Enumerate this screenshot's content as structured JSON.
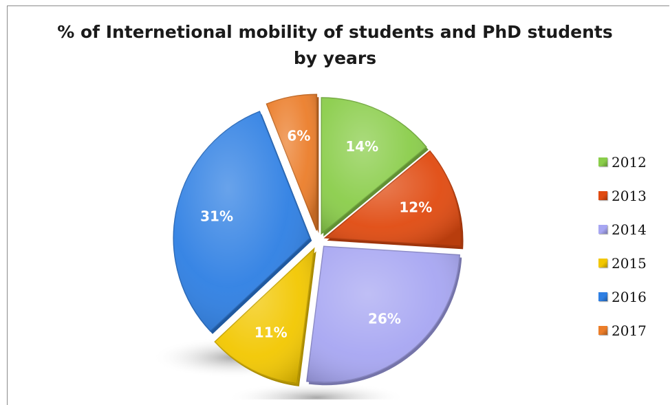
{
  "chart_data": {
    "type": "pie",
    "title": "% of Internetional mobility of students and PhD students by years",
    "title_lines": [
      "% of Internetional mobility of students and PhD students",
      "by years"
    ],
    "categories": [
      "2012",
      "2013",
      "2014",
      "2015",
      "2016",
      "2017"
    ],
    "values": [
      14,
      12,
      26,
      11,
      31,
      6
    ],
    "value_labels": [
      "14%",
      "12%",
      "26%",
      "11%",
      "31%",
      "6%"
    ],
    "unit": "%",
    "colors": [
      "#8ACD4A",
      "#E04A10",
      "#A7A6F2",
      "#F2C700",
      "#2E7FE3",
      "#EB7D2A"
    ],
    "exploded": true,
    "legend_position": "right",
    "grid": false
  }
}
